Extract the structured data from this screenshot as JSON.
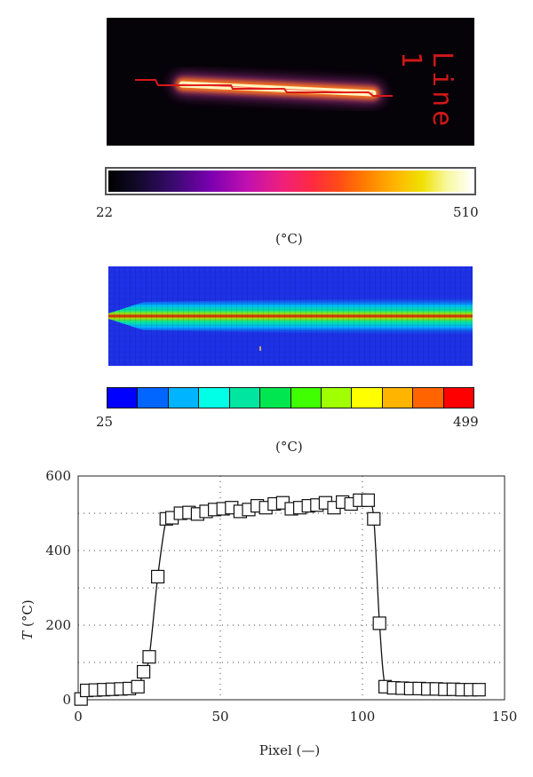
{
  "thermal_image": {
    "line_label": "Line 1",
    "colorbar": {
      "min_label": "22",
      "max_label": "510",
      "unit_label": "(°C)"
    }
  },
  "simulation_image": {
    "colorbar": {
      "min_label": "25",
      "max_label": "499",
      "unit_label": "(°C)",
      "colors": [
        "#0000ff",
        "#0066ff",
        "#00b4ff",
        "#00ffe6",
        "#00e6a0",
        "#00e650",
        "#40ff00",
        "#a0ff00",
        "#ffff00",
        "#ffb400",
        "#ff6400",
        "#ff0000"
      ]
    }
  },
  "chart_data": {
    "type": "scatter",
    "title": "",
    "xlabel": "Pixel (—)",
    "ylabel": "T (°C)",
    "xlim": [
      0,
      150
    ],
    "ylim": [
      0,
      600
    ],
    "xticks": [
      0,
      50,
      100,
      150
    ],
    "yticks": [
      0,
      200,
      400,
      600
    ],
    "grid": "dotted",
    "series": [
      {
        "marker": "open-square",
        "line": "smooth",
        "x": [
          1,
          3,
          6,
          9,
          12,
          15,
          18,
          21,
          23,
          25,
          28,
          31,
          33,
          36,
          39,
          42,
          45,
          48,
          51,
          54,
          57,
          60,
          63,
          66,
          69,
          72,
          75,
          78,
          81,
          84,
          87,
          90,
          93,
          96,
          99,
          102,
          104,
          106,
          108,
          111,
          114,
          117,
          120,
          123,
          126,
          129,
          132,
          135,
          138,
          141
        ],
        "y": [
          2,
          25,
          26,
          27,
          28,
          29,
          30,
          35,
          75,
          115,
          330,
          485,
          488,
          500,
          502,
          498,
          505,
          510,
          512,
          515,
          505,
          510,
          520,
          515,
          525,
          528,
          512,
          515,
          520,
          522,
          528,
          515,
          530,
          525,
          535,
          535,
          485,
          205,
          35,
          32,
          31,
          30,
          30,
          29,
          29,
          28,
          28,
          27,
          27,
          27
        ]
      }
    ]
  }
}
